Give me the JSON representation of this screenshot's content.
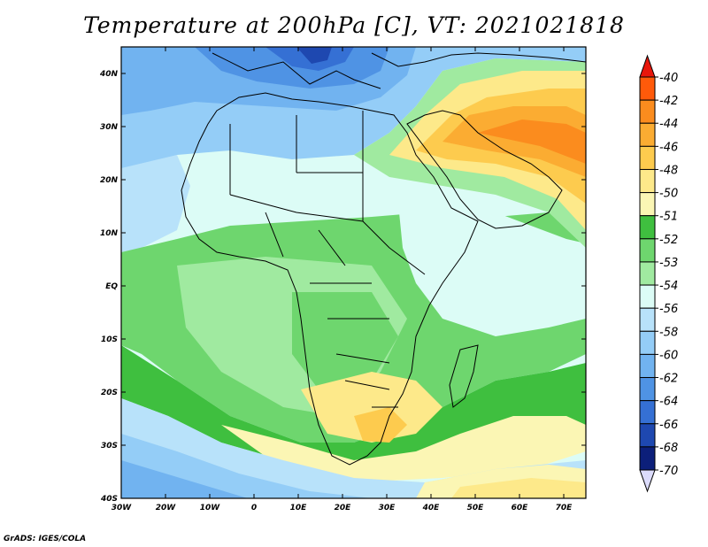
{
  "title": "Temperature at 200hPa [C], VT: 2021021818",
  "credit": "GrADS: IGES/COLA",
  "map": {
    "lon_range": [
      -30,
      75
    ],
    "lat_range": [
      -40,
      45
    ],
    "lon_ticks": [
      "30W",
      "20W",
      "10W",
      "0",
      "10E",
      "20E",
      "30E",
      "40E",
      "50E",
      "60E",
      "70E"
    ],
    "lat_ticks": [
      "40N",
      "30N",
      "20N",
      "10N",
      "EQ",
      "10S",
      "20S",
      "30S",
      "40S"
    ]
  },
  "colorbar": {
    "levels": [
      {
        "label": "-40",
        "color": "#ff2e00"
      },
      {
        "label": "-42",
        "color": "#ff5a0a"
      },
      {
        "label": "-44",
        "color": "#fb8c1e"
      },
      {
        "label": "-46",
        "color": "#fbac32"
      },
      {
        "label": "-48",
        "color": "#fdcb4e"
      },
      {
        "label": "-50",
        "color": "#fde98a"
      },
      {
        "label": "-51",
        "color": "#fbf6b4"
      },
      {
        "label": "-52",
        "color": "#3fbf3f"
      },
      {
        "label": "-53",
        "color": "#6ed66e"
      },
      {
        "label": "-54",
        "color": "#a0eaa0"
      },
      {
        "label": "-56",
        "color": "#dcfcf6"
      },
      {
        "label": "-58",
        "color": "#b8e2fa"
      },
      {
        "label": "-60",
        "color": "#94cdf7"
      },
      {
        "label": "-62",
        "color": "#71b3f0"
      },
      {
        "label": "-64",
        "color": "#4f93e4"
      },
      {
        "label": "-66",
        "color": "#3570d4"
      },
      {
        "label": "-68",
        "color": "#1e48b0"
      },
      {
        "label": "-70",
        "color": "#0c1f7a"
      }
    ],
    "over_color": "#e8170c",
    "under_color": "#dcdcfc"
  }
}
